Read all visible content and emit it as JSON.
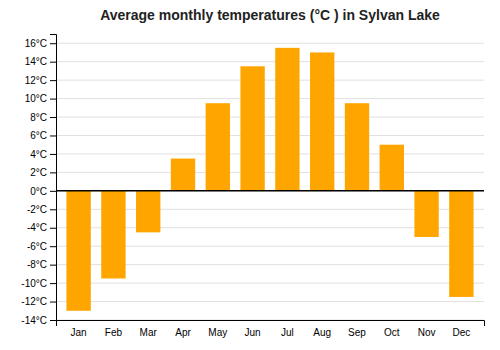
{
  "chart_data": {
    "type": "bar",
    "title": "Average monthly temperatures (°C ) in Sylvan Lake",
    "categories": [
      "Jan",
      "Feb",
      "Mar",
      "Apr",
      "May",
      "Jun",
      "Jul",
      "Aug",
      "Sep",
      "Oct",
      "Nov",
      "Dec"
    ],
    "values": [
      -13.0,
      -9.5,
      -4.5,
      3.5,
      9.5,
      13.5,
      15.5,
      15.0,
      9.5,
      5.0,
      -5.0,
      -11.5
    ],
    "color": "#FFA500",
    "ylim": [
      -14,
      17
    ],
    "yticks": [
      {
        "value": -14,
        "label": "-14°C"
      },
      {
        "value": -12,
        "label": "-12°C"
      },
      {
        "value": -10,
        "label": "-10°C"
      },
      {
        "value": -8,
        "label": "-8°C"
      },
      {
        "value": -6,
        "label": "-6°C"
      },
      {
        "value": -4,
        "label": "-4°C"
      },
      {
        "value": -2,
        "label": "-2°C"
      },
      {
        "value": 0,
        "label": "0°C"
      },
      {
        "value": 2,
        "label": "2°C"
      },
      {
        "value": 4,
        "label": "4°C"
      },
      {
        "value": 6,
        "label": "6°C"
      },
      {
        "value": 8,
        "label": "8°C"
      },
      {
        "value": 10,
        "label": "10°C"
      },
      {
        "value": 12,
        "label": "12°C"
      },
      {
        "value": 14,
        "label": "14°C"
      },
      {
        "value": 16,
        "label": "16°C"
      }
    ],
    "grid": true
  }
}
